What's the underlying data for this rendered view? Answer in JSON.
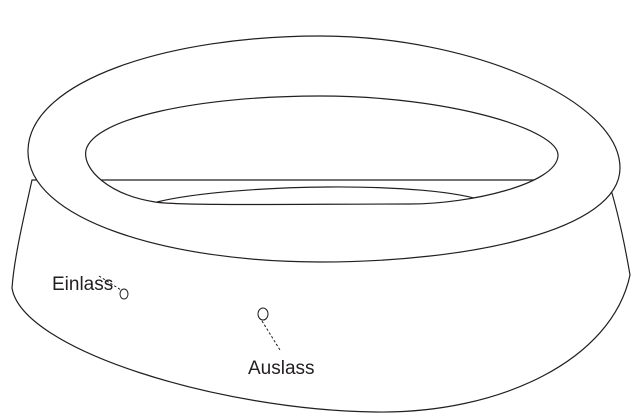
{
  "diagram": {
    "labels": {
      "inlet": "Einlass",
      "outlet": "Auslass"
    },
    "colors": {
      "line": "#231f20",
      "fill": "#ffffff"
    }
  }
}
